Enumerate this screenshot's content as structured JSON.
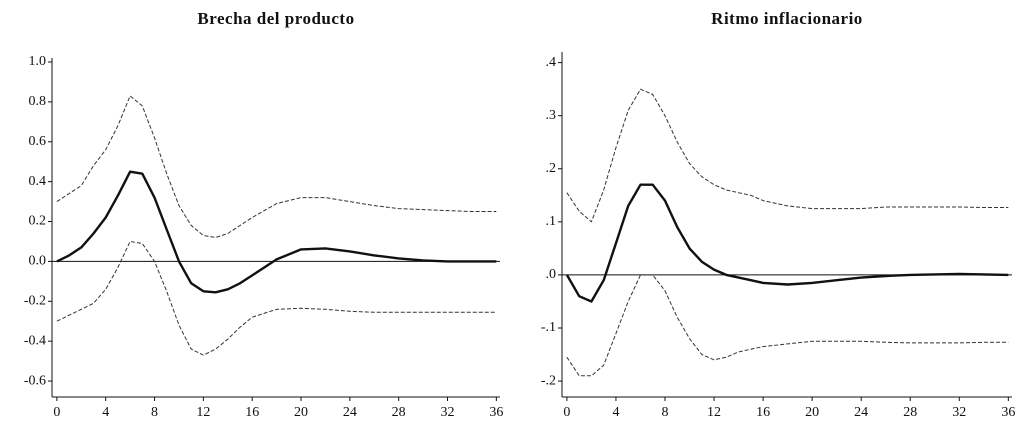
{
  "chart_data": [
    {
      "type": "line",
      "title": "Brecha del producto",
      "x": [
        0,
        1,
        2,
        3,
        4,
        5,
        6,
        7,
        8,
        9,
        10,
        11,
        12,
        13,
        14,
        15,
        16,
        18,
        20,
        22,
        24,
        26,
        28,
        30,
        32,
        34,
        36
      ],
      "series": [
        {
          "color": "#111111",
          "line_style": "solid",
          "linewidth": 2.4,
          "values": [
            0,
            0.03,
            0.07,
            0.14,
            0.22,
            0.33,
            0.45,
            0.44,
            0.32,
            0.16,
            0.0,
            -0.11,
            -0.15,
            -0.155,
            -0.14,
            -0.11,
            -0.07,
            0.01,
            0.06,
            0.065,
            0.05,
            0.03,
            0.015,
            0.005,
            0,
            0,
            0
          ]
        },
        {
          "color": "#333333",
          "line_style": "dashed",
          "linewidth": 1,
          "values": [
            0.3,
            0.34,
            0.38,
            0.48,
            0.56,
            0.68,
            0.83,
            0.78,
            0.62,
            0.44,
            0.28,
            0.18,
            0.13,
            0.12,
            0.14,
            0.18,
            0.22,
            0.29,
            0.32,
            0.32,
            0.3,
            0.28,
            0.265,
            0.26,
            0.255,
            0.25,
            0.25
          ]
        },
        {
          "color": "#333333",
          "line_style": "dashed",
          "linewidth": 1,
          "values": [
            -0.3,
            -0.27,
            -0.24,
            -0.21,
            -0.14,
            -0.03,
            0.1,
            0.09,
            0.0,
            -0.15,
            -0.32,
            -0.44,
            -0.47,
            -0.44,
            -0.39,
            -0.33,
            -0.28,
            -0.24,
            -0.235,
            -0.24,
            -0.25,
            -0.255,
            -0.255,
            -0.255,
            -0.255,
            -0.255,
            -0.255
          ]
        }
      ],
      "xlim": [
        -0.4,
        36.3
      ],
      "xticks": [
        0,
        4,
        8,
        12,
        16,
        20,
        24,
        28,
        32,
        36
      ],
      "ylim": [
        -0.68,
        1.02
      ],
      "yticks": [
        {
          "value": 1,
          "label": "1.0"
        },
        0.8,
        0.6,
        0.4,
        0.2,
        {
          "value": 0,
          "label": "0.0"
        },
        -0.2,
        -0.4,
        -0.6
      ],
      "zero_line": true
    },
    {
      "type": "line",
      "title": "Ritmo inflacionario",
      "x": [
        0,
        1,
        2,
        3,
        4,
        5,
        6,
        7,
        8,
        9,
        10,
        11,
        12,
        13,
        14,
        15,
        16,
        18,
        20,
        22,
        24,
        26,
        28,
        30,
        32,
        34,
        36
      ],
      "series": [
        {
          "color": "#111111",
          "line_style": "solid",
          "linewidth": 2.4,
          "values": [
            0,
            -0.04,
            -0.05,
            -0.01,
            0.06,
            0.13,
            0.17,
            0.17,
            0.14,
            0.09,
            0.05,
            0.025,
            0.01,
            0.0,
            -0.005,
            -0.01,
            -0.015,
            -0.018,
            -0.015,
            -0.01,
            -0.005,
            -0.002,
            0,
            0.001,
            0.002,
            0.001,
            0
          ]
        },
        {
          "color": "#333333",
          "line_style": "dashed",
          "linewidth": 1,
          "values": [
            0.155,
            0.12,
            0.1,
            0.16,
            0.24,
            0.31,
            0.35,
            0.34,
            0.3,
            0.25,
            0.21,
            0.185,
            0.17,
            0.16,
            0.155,
            0.15,
            0.14,
            0.13,
            0.125,
            0.125,
            0.125,
            0.128,
            0.128,
            0.128,
            0.128,
            0.127,
            0.127
          ]
        },
        {
          "color": "#333333",
          "line_style": "dashed",
          "linewidth": 1,
          "values": [
            -0.155,
            -0.19,
            -0.19,
            -0.17,
            -0.11,
            -0.05,
            0.0,
            0.0,
            -0.03,
            -0.08,
            -0.12,
            -0.15,
            -0.16,
            -0.155,
            -0.145,
            -0.14,
            -0.135,
            -0.13,
            -0.125,
            -0.125,
            -0.125,
            -0.127,
            -0.128,
            -0.128,
            -0.128,
            -0.127,
            -0.127
          ]
        }
      ],
      "xlim": [
        -0.4,
        36.3
      ],
      "xticks": [
        0,
        4,
        8,
        12,
        16,
        20,
        24,
        28,
        32,
        36
      ],
      "ylim": [
        -0.23,
        0.42
      ],
      "yticks": [
        {
          "value": 0.4,
          "label": ".4"
        },
        {
          "value": 0.3,
          "label": ".3"
        },
        {
          "value": 0.2,
          "label": ".2"
        },
        {
          "value": 0.1,
          "label": ".1"
        },
        {
          "value": 0,
          "label": ".0"
        },
        {
          "value": -0.1,
          "label": "-.1"
        },
        {
          "value": -0.2,
          "label": "-.2"
        }
      ],
      "zero_line": true
    }
  ]
}
